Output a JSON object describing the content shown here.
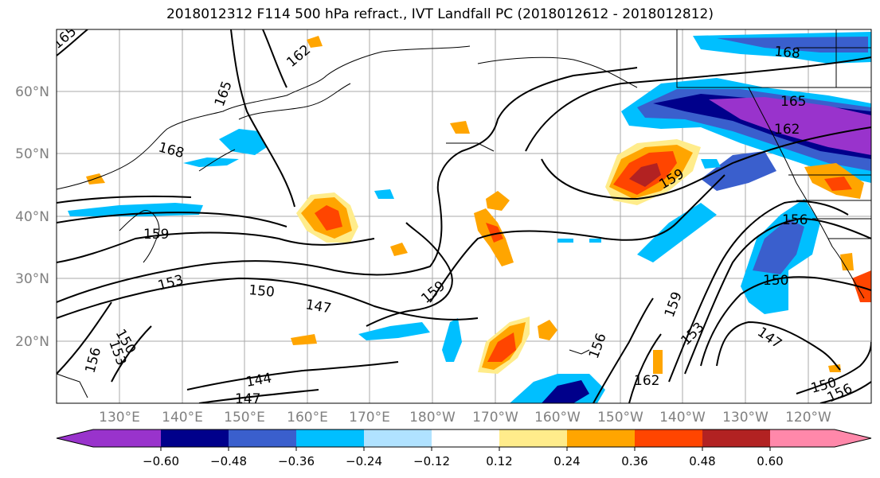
{
  "title": "2018012312 F114 500 hPa refract., IVT Landfall PC (2018012612 - 2018012812)",
  "lat_labels": [
    "20°N",
    "30°N",
    "40°N",
    "50°N",
    "60°N"
  ],
  "lat_values": [
    20,
    30,
    40,
    50,
    60
  ],
  "lon_labels": [
    "130°E",
    "140°E",
    "150°E",
    "160°E",
    "170°E",
    "180°W",
    "170°W",
    "160°W",
    "150°W",
    "140°W",
    "130°W",
    "120°W"
  ],
  "colorbar": {
    "colors": [
      "#9933cc",
      "#00008b",
      "#3a5fcd",
      "#00bfff",
      "#b0e2ff",
      "#ffffff",
      "#ffec8b",
      "#ffa500",
      "#ff4500",
      "#b22222",
      "#ff88aa"
    ],
    "tick_labels": [
      "−0.60",
      "−0.48",
      "−0.36",
      "−0.24",
      "−0.12",
      "0.12",
      "0.24",
      "0.36",
      "0.48",
      "0.60"
    ]
  },
  "contour_labels": [
    {
      "text": "165"
    },
    {
      "text": "162"
    },
    {
      "text": "165"
    },
    {
      "text": "168"
    },
    {
      "text": "159"
    },
    {
      "text": "153"
    },
    {
      "text": "150"
    },
    {
      "text": "147"
    },
    {
      "text": "159"
    },
    {
      "text": "144"
    },
    {
      "text": "147"
    },
    {
      "text": "150"
    },
    {
      "text": "153"
    },
    {
      "text": "156"
    },
    {
      "text": "168"
    },
    {
      "text": "165"
    },
    {
      "text": "162"
    },
    {
      "text": "159"
    },
    {
      "text": "156"
    },
    {
      "text": "150"
    },
    {
      "text": "159"
    },
    {
      "text": "153"
    },
    {
      "text": "147"
    },
    {
      "text": "162"
    },
    {
      "text": "156"
    },
    {
      "text": "150"
    },
    {
      "text": "156"
    }
  ]
}
